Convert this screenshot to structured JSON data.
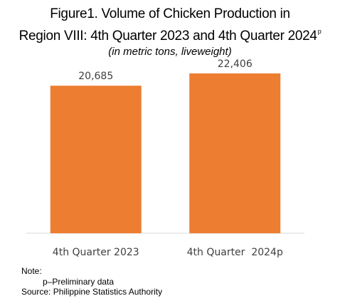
{
  "header": {
    "title_line1": "Figure1. Volume of Chicken Production in",
    "title_line2": "Region VIII: 4th Quarter 2023 and 4th Quarter 2024",
    "title_superscript": "p",
    "subtitle_open": "(",
    "subtitle_italic": "in metric tons, liveweight",
    "subtitle_close": ")"
  },
  "chart_data": {
    "type": "bar",
    "categories": [
      "4th Quarter 2023",
      "4th Quarter  2024p"
    ],
    "values": [
      20685,
      22406
    ],
    "data_labels": [
      "20,685",
      "22,406"
    ],
    "title": "Figure1. Volume of Chicken Production in Region VIII: 4th Quarter 2023 and 4th Quarter 2024p",
    "subtitle": "(in metric tons, liveweight)",
    "xlabel": "",
    "ylabel": "",
    "ylim": [
      0,
      23500
    ],
    "grid": false,
    "legend": "none",
    "bar_color": "#ED7D31"
  },
  "notes": {
    "note_label": "Note:",
    "preliminary": "p–Preliminary data",
    "source": "Source: Philippine Statistics Authority"
  }
}
